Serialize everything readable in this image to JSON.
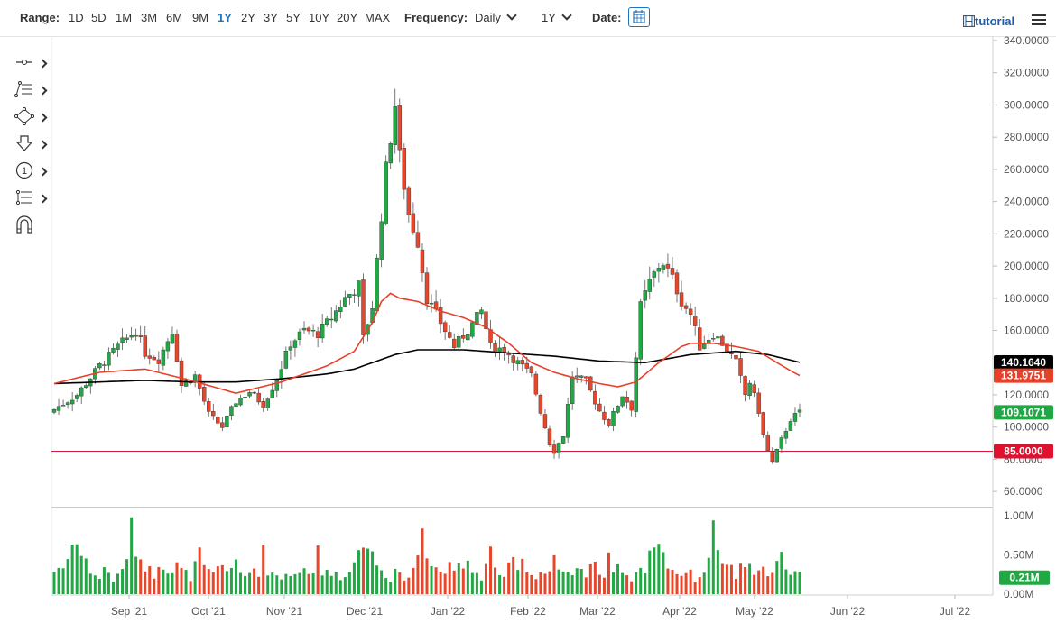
{
  "toolbar": {
    "range_label": "Range:",
    "ranges": [
      "1D",
      "5D",
      "1M",
      "3M",
      "6M",
      "9M",
      "1Y",
      "2Y",
      "3Y",
      "5Y",
      "10Y",
      "20Y",
      "MAX"
    ],
    "active_range": "1Y",
    "frequency_label": "Frequency:",
    "frequency_value": "Daily",
    "period_value": "1Y",
    "date_label": "Date:",
    "tutorial_label": "tutorial"
  },
  "icons": {
    "calendar": "calendar-icon",
    "tutorial": "film-icon",
    "menu": "hamburger-menu-icon",
    "tools": [
      "line-tool-icon",
      "list-tool-icon",
      "shape-tool-icon",
      "arrow-down-icon",
      "annotation-number-icon",
      "fibonacci-icon",
      "magnet-icon"
    ]
  },
  "colors": {
    "up": "#22a745",
    "down": "#e8462a",
    "ma_fast": "#e8412a",
    "ma_slow": "#000000",
    "support": "#d81b3c",
    "active": "#1e73be"
  },
  "chart_data": {
    "type": "candlestick",
    "price_axis": {
      "ticks": [
        "340.0000",
        "320.0000",
        "300.0000",
        "280.0000",
        "260.0000",
        "240.0000",
        "220.0000",
        "200.0000",
        "180.0000",
        "160.0000",
        "120.0000",
        "100.0000",
        "80.0000",
        "60.0000"
      ],
      "ylim": [
        50,
        340
      ]
    },
    "volume_axis": {
      "ticks": [
        "1.00M",
        "0.50M",
        "0.00M"
      ],
      "ylim": [
        0,
        1000000
      ]
    },
    "x_labels": [
      "Sep '21",
      "Oct '21",
      "Nov '21",
      "Dec '21",
      "Jan '22",
      "Feb '22",
      "Mar '22",
      "Apr '22",
      "May '22",
      "Jun '22",
      "Jul '22"
    ],
    "price_labels": [
      {
        "value": 140.164,
        "text": "140.1640",
        "color": "#000000"
      },
      {
        "value": 131.9751,
        "text": "131.9751",
        "color": "#e8412a"
      },
      {
        "value": 109.1071,
        "text": "109.1071",
        "color": "#22a745"
      },
      {
        "value": 85.0,
        "text": "85.0000",
        "color": "#e0102f"
      }
    ],
    "volume_label": {
      "value": 210000,
      "text": "0.21M",
      "color": "#22a745"
    },
    "support_level": 85.0,
    "close_anchors": [
      [
        0,
        111
      ],
      [
        5,
        120
      ],
      [
        10,
        138
      ],
      [
        14,
        150
      ],
      [
        18,
        160
      ],
      [
        20,
        146
      ],
      [
        23,
        142
      ],
      [
        26,
        160
      ],
      [
        28,
        126
      ],
      [
        31,
        132
      ],
      [
        34,
        108
      ],
      [
        37,
        100
      ],
      [
        40,
        116
      ],
      [
        43,
        122
      ],
      [
        46,
        114
      ],
      [
        49,
        130
      ],
      [
        52,
        152
      ],
      [
        55,
        160
      ],
      [
        58,
        158
      ],
      [
        61,
        168
      ],
      [
        64,
        180
      ],
      [
        67,
        188
      ],
      [
        68,
        155
      ],
      [
        70,
        175
      ],
      [
        73,
        260
      ],
      [
        75,
        300
      ],
      [
        76,
        268
      ],
      [
        78,
        232
      ],
      [
        80,
        215
      ],
      [
        82,
        180
      ],
      [
        85,
        165
      ],
      [
        88,
        150
      ],
      [
        91,
        160
      ],
      [
        94,
        172
      ],
      [
        96,
        150
      ],
      [
        99,
        148
      ],
      [
        102,
        140
      ],
      [
        105,
        132
      ],
      [
        107,
        110
      ],
      [
        109,
        90
      ],
      [
        110,
        85
      ],
      [
        112,
        95
      ],
      [
        114,
        132
      ],
      [
        117,
        128
      ],
      [
        120,
        110
      ],
      [
        122,
        102
      ],
      [
        125,
        120
      ],
      [
        127,
        112
      ],
      [
        129,
        175
      ],
      [
        131,
        190
      ],
      [
        133,
        200
      ],
      [
        134,
        202
      ],
      [
        136,
        192
      ],
      [
        138,
        178
      ],
      [
        140,
        170
      ],
      [
        142,
        150
      ],
      [
        145,
        158
      ],
      [
        147,
        152
      ],
      [
        150,
        140
      ],
      [
        152,
        120
      ],
      [
        153,
        128
      ],
      [
        155,
        110
      ],
      [
        156,
        95
      ],
      [
        157,
        85
      ],
      [
        158,
        78
      ],
      [
        160,
        92
      ],
      [
        162,
        105
      ],
      [
        164,
        109.1
      ]
    ],
    "ma50_anchors": [
      [
        0,
        127
      ],
      [
        10,
        134
      ],
      [
        20,
        136
      ],
      [
        30,
        129
      ],
      [
        40,
        121
      ],
      [
        50,
        128
      ],
      [
        60,
        138
      ],
      [
        66,
        147
      ],
      [
        70,
        165
      ],
      [
        72,
        178
      ],
      [
        74,
        183
      ],
      [
        76,
        180
      ],
      [
        80,
        178
      ],
      [
        85,
        172
      ],
      [
        90,
        168
      ],
      [
        95,
        162
      ],
      [
        100,
        152
      ],
      [
        105,
        140
      ],
      [
        110,
        134
      ],
      [
        115,
        130
      ],
      [
        120,
        127
      ],
      [
        124,
        125
      ],
      [
        128,
        128
      ],
      [
        133,
        140
      ],
      [
        138,
        150
      ],
      [
        140,
        152
      ],
      [
        145,
        152
      ],
      [
        150,
        150
      ],
      [
        155,
        147
      ],
      [
        159,
        140
      ],
      [
        162,
        135
      ],
      [
        164,
        132
      ]
    ],
    "ma200_anchors": [
      [
        0,
        127
      ],
      [
        10,
        128
      ],
      [
        20,
        129
      ],
      [
        30,
        128
      ],
      [
        40,
        128
      ],
      [
        50,
        130
      ],
      [
        60,
        133
      ],
      [
        66,
        136
      ],
      [
        70,
        140
      ],
      [
        75,
        145
      ],
      [
        80,
        148
      ],
      [
        90,
        148
      ],
      [
        100,
        146
      ],
      [
        110,
        144
      ],
      [
        120,
        141
      ],
      [
        130,
        140
      ],
      [
        140,
        145
      ],
      [
        150,
        147
      ],
      [
        157,
        145
      ],
      [
        164,
        140.2
      ]
    ],
    "volume_pattern": [
      0.29,
      0.35,
      0.33,
      0.45,
      0.78,
      0.62,
      0.5,
      0.4,
      0.3,
      0.25,
      0.2,
      0.32,
      0.28,
      0.18,
      0.22,
      0.3,
      0.52,
      0.92,
      0.6,
      0.45,
      0.38,
      0.3,
      0.25,
      0.42,
      0.4,
      0.32,
      0.28,
      0.36,
      0.3,
      0.26,
      0.22,
      0.35,
      0.55,
      0.3,
      0.28,
      0.24,
      0.33,
      0.38,
      0.3,
      0.4,
      0.36,
      0.25,
      0.22,
      0.28,
      0.33,
      0.29,
      0.52,
      0.31,
      0.27,
      0.24,
      0.2,
      0.3,
      0.26,
      0.24,
      0.33,
      0.36,
      0.22,
      0.28,
      0.55,
      0.3,
      0.4,
      0.22,
      0.28,
      0.21
    ]
  }
}
